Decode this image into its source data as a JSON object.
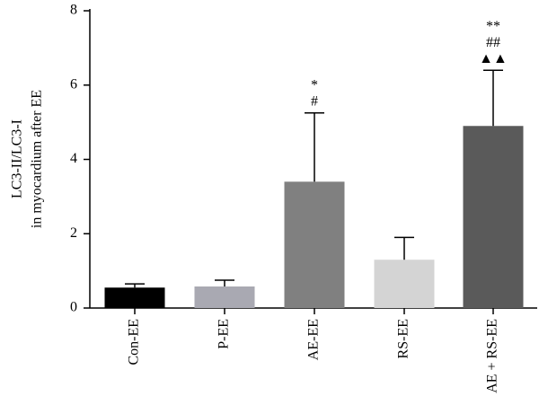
{
  "chart_data": {
    "type": "bar",
    "ylabel_lines": [
      "LC3-II/LC3-I",
      "in myocardium after EE"
    ],
    "xlabel": "",
    "ylim": [
      0,
      8
    ],
    "yticks": [
      0,
      2,
      4,
      6,
      8
    ],
    "categories": [
      "Con-EE",
      "P-EE",
      "AE-EE",
      "RS-EE",
      "AE + RS-EE"
    ],
    "values": [
      0.55,
      0.58,
      3.4,
      1.3,
      4.9
    ],
    "errors": [
      0.1,
      0.17,
      1.85,
      0.6,
      1.5
    ],
    "colors": [
      "#000000",
      "#a9a9b2",
      "#808080",
      "#d4d4d4",
      "#5a5a5a"
    ],
    "annotations": [
      {
        "category": "AE-EE",
        "lines": [
          "*",
          "#"
        ]
      },
      {
        "category": "AE + RS-EE",
        "lines": [
          "**",
          "##",
          "▲▲"
        ]
      }
    ],
    "grid": false
  }
}
